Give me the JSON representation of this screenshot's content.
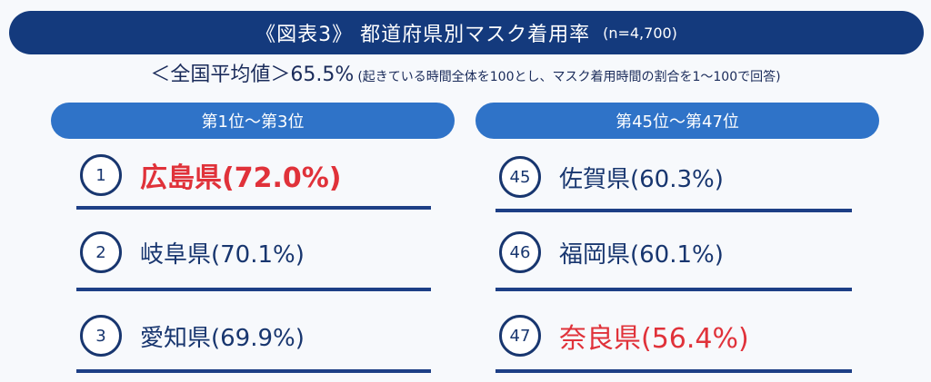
{
  "title": {
    "text": "《図表3》 都道府県別マスク着用率",
    "sample": "(n=4,700)"
  },
  "national_average": {
    "label": "＜全国平均値＞",
    "value": "65.5%",
    "note": "(起きている時間全体を100とし、マスク着用時間の割合を1～100で回答)"
  },
  "top": {
    "header": "第1位～第3位",
    "items": [
      {
        "rank": "1",
        "text": "広島県(72.0%)"
      },
      {
        "rank": "2",
        "text": "岐阜県(70.1%)"
      },
      {
        "rank": "3",
        "text": "愛知県(69.9%)"
      }
    ]
  },
  "bottom": {
    "header": "第45位～第47位",
    "items": [
      {
        "rank": "45",
        "text": "佐賀県(60.3%)"
      },
      {
        "rank": "46",
        "text": "福岡県(60.1%)"
      },
      {
        "rank": "47",
        "text": "奈良県(56.4%)"
      }
    ]
  },
  "colors": {
    "navy": "#143a7d",
    "blue": "#2f73c8",
    "red": "#e0323a"
  }
}
